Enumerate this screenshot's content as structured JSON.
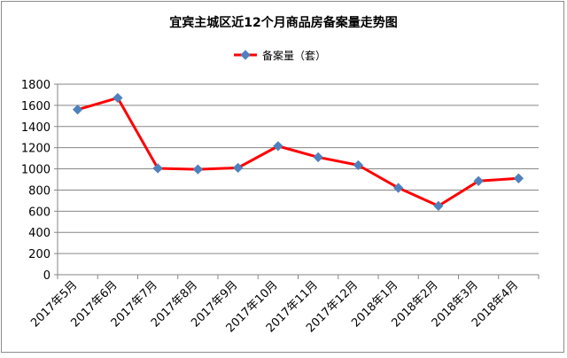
{
  "chart_data": {
    "type": "line",
    "title": "宜宾主城区近12个月商品房备案量走势图",
    "xlabel": "",
    "ylabel": "",
    "categories": [
      "2017年5月",
      "2017年6月",
      "2017年7月",
      "2017年8月",
      "2017年9月",
      "2017年10月",
      "2017年11月",
      "2017年12月",
      "2018年1月",
      "2018年2月",
      "2018年3月",
      "2018年4月"
    ],
    "series": [
      {
        "name": "备案量（套）",
        "values": [
          1560,
          1670,
          1005,
          995,
          1010,
          1215,
          1110,
          1035,
          820,
          650,
          885,
          910
        ]
      }
    ],
    "ylim": [
      0,
      1800
    ],
    "yticks": [
      0,
      200,
      400,
      600,
      800,
      1000,
      1200,
      1400,
      1600,
      1800
    ],
    "grid": true,
    "legend": "top-center",
    "colors": {
      "line": "#ff0000",
      "marker": "#4f81bd",
      "grid": "#868686",
      "axis": "#868686"
    }
  }
}
